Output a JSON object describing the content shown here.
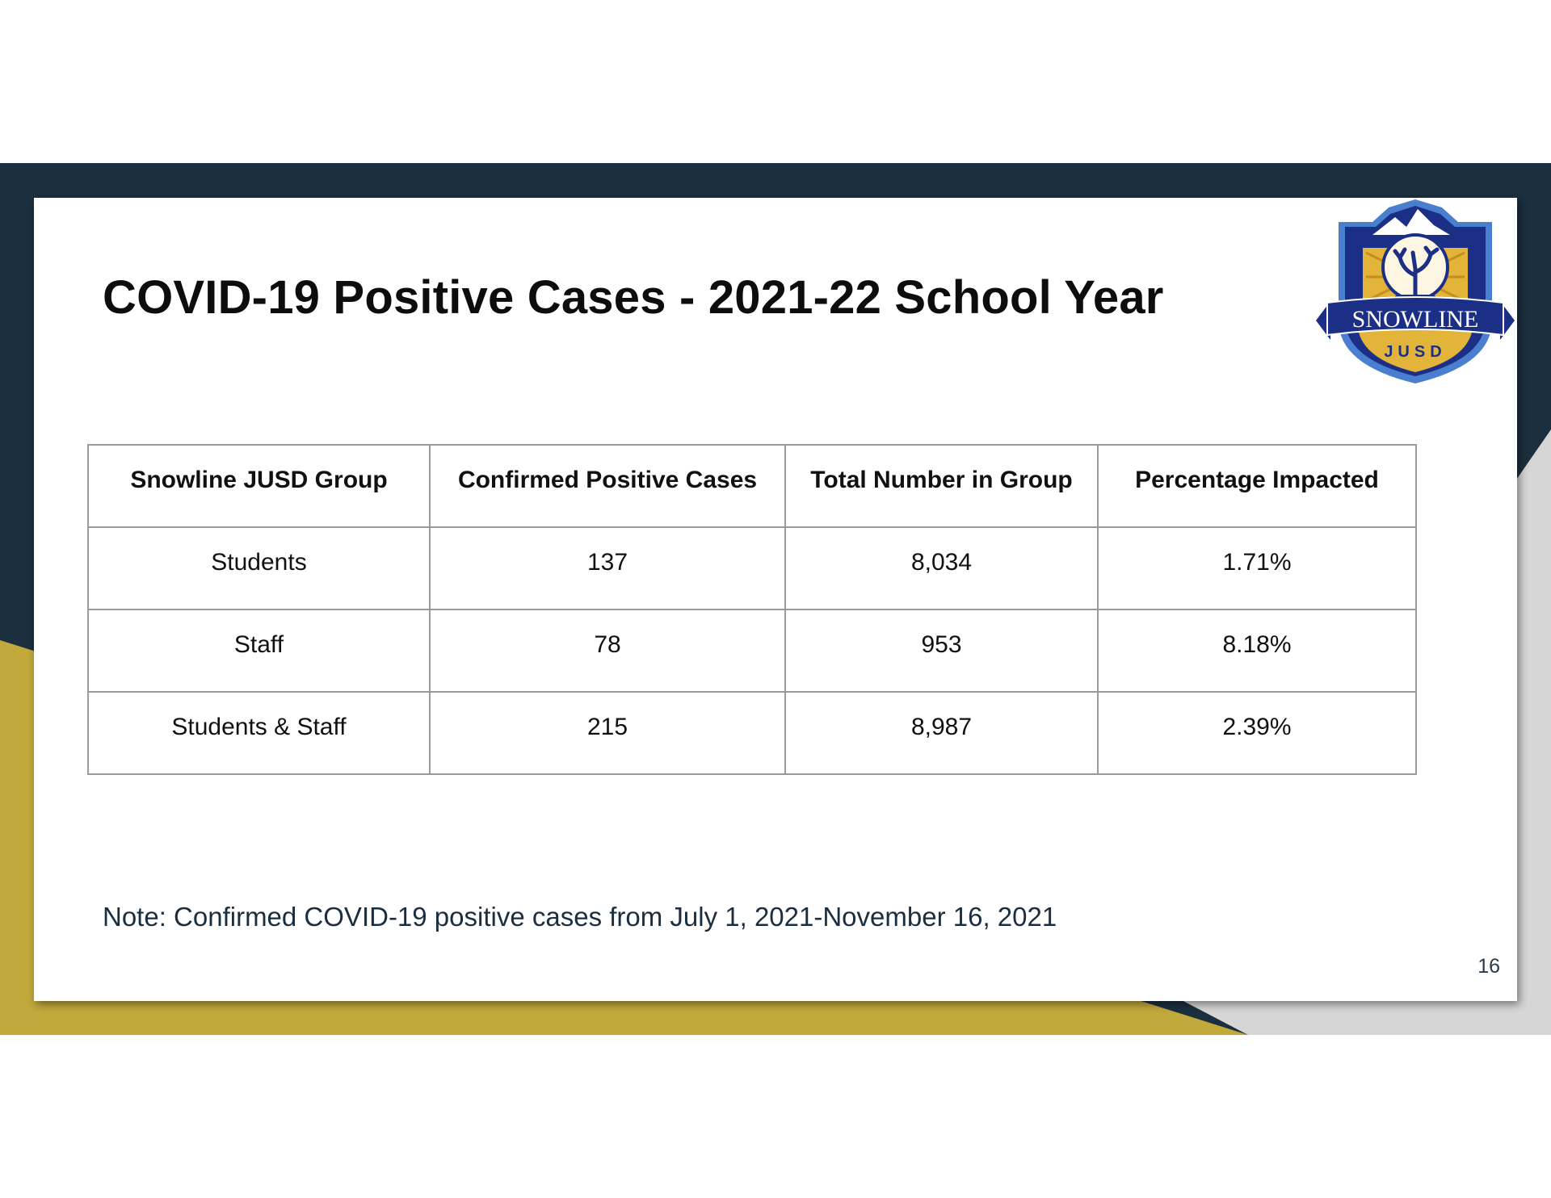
{
  "slide": {
    "title": "COVID-19 Positive Cases - 2021-22 School Year",
    "note": "Note: Confirmed COVID-19 positive cases from July 1, 2021-November 16, 2021",
    "page_number": "16"
  },
  "logo": {
    "text_top": "SNOWLINE",
    "text_bottom": "JUSD"
  },
  "table": {
    "headers": [
      "Snowline JUSD Group",
      "Confirmed Positive Cases",
      "Total Number in Group",
      "Percentage Impacted"
    ],
    "rows": [
      [
        "Students",
        "137",
        "8,034",
        "1.71%"
      ],
      [
        "Staff",
        "78",
        "953",
        "8.18%"
      ],
      [
        "Students & Staff",
        "215",
        "8,987",
        "2.39%"
      ]
    ]
  },
  "colors": {
    "navy": "#1b2f3f",
    "gold": "#c2a93b",
    "light_gray": "#d6d6d6",
    "logo_blue": "#1c2f86",
    "logo_gold": "#e3b43a"
  }
}
